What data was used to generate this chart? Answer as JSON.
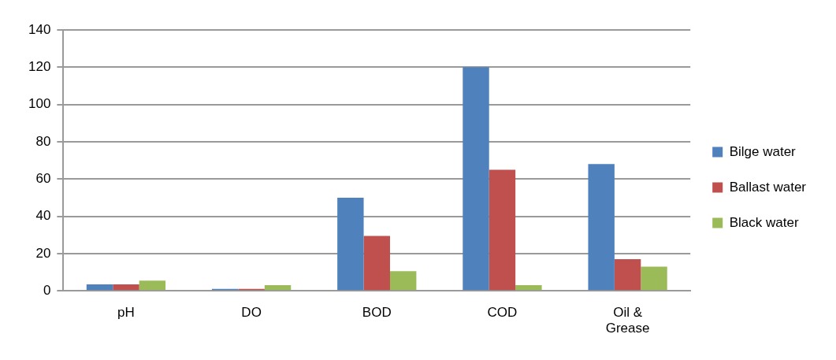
{
  "chart_data": {
    "type": "bar",
    "categories": [
      "pH",
      "DO",
      "BOD",
      "COD",
      "Oil & Grease"
    ],
    "series": [
      {
        "name": "Bilge water",
        "color": "#4f81bd",
        "values": [
          3.5,
          1,
          50,
          120,
          68
        ]
      },
      {
        "name": "Ballast water",
        "color": "#c0504d",
        "values": [
          3.5,
          1,
          29.5,
          65,
          17
        ]
      },
      {
        "name": "Black water",
        "color": "#9bbb59",
        "values": [
          5.5,
          3,
          10.5,
          3,
          13
        ]
      }
    ],
    "ylim": [
      0,
      140
    ],
    "yticks": [
      0,
      20,
      40,
      60,
      80,
      100,
      120,
      140
    ],
    "grid": "y",
    "legend": "right"
  }
}
